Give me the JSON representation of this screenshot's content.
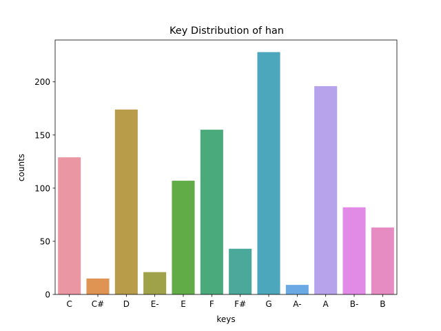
{
  "chart_data": {
    "type": "bar",
    "title": "Key Distribution of han",
    "xlabel": "keys",
    "ylabel": "counts",
    "categories": [
      "C",
      "C#",
      "D",
      "E-",
      "E",
      "F",
      "F#",
      "G",
      "A-",
      "A",
      "B-",
      "B"
    ],
    "values": [
      129,
      15,
      174,
      21,
      107,
      155,
      43,
      228,
      9,
      196,
      82,
      63
    ],
    "ylim": [
      0,
      239.4
    ],
    "yticks": [
      0,
      50,
      100,
      150,
      200
    ],
    "grid": false,
    "colors": [
      "#ea96a3",
      "#e09454",
      "#b89c49",
      "#a0a24a",
      "#61ac47",
      "#4aaa7b",
      "#4aa99b",
      "#4ca7bd",
      "#6aa9e4",
      "#b6a3ec",
      "#e18be6",
      "#e68cc2"
    ]
  }
}
